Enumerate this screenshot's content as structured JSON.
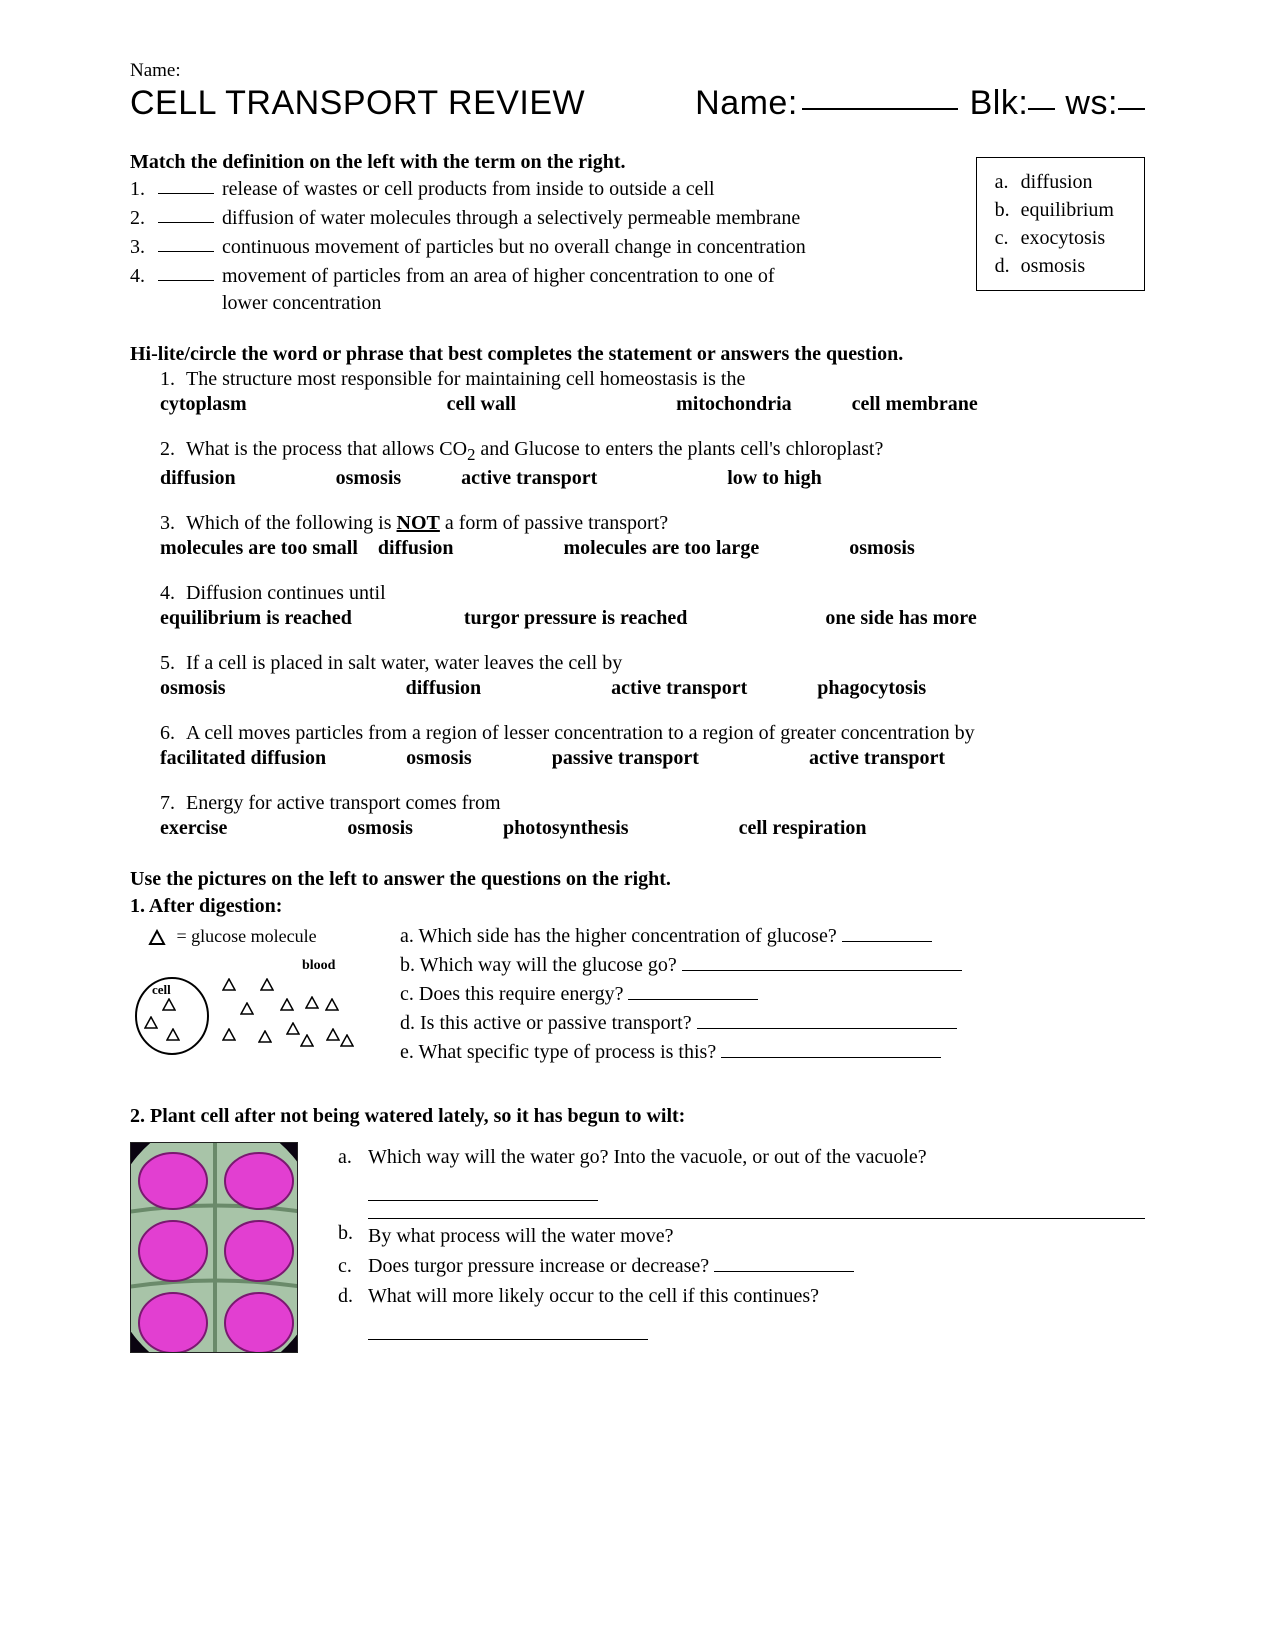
{
  "header": {
    "small_name": "Name:",
    "title": "CELL TRANSPORT REVIEW",
    "name_label": "Name:",
    "blk_label": "Blk:",
    "ws_label": "ws:"
  },
  "match": {
    "heading": "Match the definition on the left with the term on the right.",
    "items": [
      {
        "num": "1.",
        "text": "release of wastes or cell products from inside to outside a cell"
      },
      {
        "num": "2.",
        "text": "diffusion of water molecules through a selectively permeable membrane"
      },
      {
        "num": "3.",
        "text": "continuous movement of particles but no overall change in concentration"
      },
      {
        "num": "4.",
        "text": "movement of particles from an area of higher concentration to one of lower concentration"
      }
    ],
    "terms": [
      {
        "letter": "a.",
        "term": "diffusion"
      },
      {
        "letter": "b.",
        "term": "equilibrium"
      },
      {
        "letter": "c.",
        "term": "exocytosis"
      },
      {
        "letter": "d.",
        "term": "osmosis"
      }
    ]
  },
  "circle": {
    "heading": "Hi-lite/circle the word or phrase that best completes the statement or answers the question.",
    "questions": [
      {
        "num": "1.",
        "text": "The structure most responsible for maintaining cell homeostasis is the",
        "choices": [
          "cytoplasm",
          "cell wall",
          "mitochondria",
          "cell membrane"
        ],
        "gaps": [
          200,
          160,
          60,
          0
        ]
      },
      {
        "num": "2.",
        "prefix": "What is the process that allows CO",
        "sub": "2",
        "suffix": " and Glucose to enters the plants cell's chloroplast?",
        "choices": [
          "diffusion",
          "osmosis",
          "active transport",
          "low to high"
        ],
        "gaps": [
          100,
          60,
          130,
          0
        ]
      },
      {
        "num": "3.",
        "prefix": "Which of the following is ",
        "bold_u": "NOT",
        "suffix": " a form of passive transport?",
        "choices": [
          "molecules are too small",
          "diffusion",
          "molecules are too large",
          "osmosis"
        ],
        "gaps": [
          20,
          110,
          90,
          0
        ]
      },
      {
        "num": "4.",
        "text": "Diffusion continues until",
        "choices": [
          "equilibrium is reached",
          "turgor pressure is reached",
          "one side has more"
        ],
        "gaps": [
          112,
          138,
          0
        ]
      },
      {
        "num": "5.",
        "text": "If a cell is placed in salt water, water leaves the cell by",
        "choices": [
          "osmosis",
          "diffusion",
          "active transport",
          "phagocytosis"
        ],
        "gaps": [
          180,
          130,
          70,
          0
        ]
      },
      {
        "num": "6.",
        "text": "A cell moves particles from a region of lesser concentration to a region of greater concentration by",
        "choices": [
          "facilitated diffusion",
          "osmosis",
          "passive transport",
          "active transport"
        ],
        "gaps": [
          80,
          80,
          110,
          0
        ]
      },
      {
        "num": "7.",
        "text": "Energy for active transport comes from",
        "choices": [
          "exercise",
          "osmosis",
          "photosynthesis",
          "cell respiration"
        ],
        "gaps": [
          120,
          90,
          110,
          0
        ]
      }
    ]
  },
  "pictures": {
    "heading": "Use the pictures on the left to answer the questions on the right.",
    "q1_heading": "1.  After digestion:",
    "legend": "= glucose molecule",
    "blood_label": "blood",
    "cell_label": "cell",
    "q1_items": [
      {
        "letter": "a.",
        "text": "Which side has the higher concentration of glucose?",
        "blank": 90
      },
      {
        "letter": "b.",
        "text": "Which way will the glucose go?",
        "blank": 280
      },
      {
        "letter": "c.",
        "text": "Does this require energy?",
        "blank": 130
      },
      {
        "letter": "d.",
        "text": "Is this active or passive transport?",
        "blank": 260
      },
      {
        "letter": "e.",
        "text": "What specific type of process is this?",
        "blank": 220
      }
    ],
    "q2_heading": "2. Plant cell after not being watered lately, so it has begun to wilt:",
    "q2_items": [
      {
        "letter": "a.",
        "text": "Which way will the water go? Into the vacuole, or out of the vacuole?",
        "answer_below": 230
      },
      {
        "letter": "b.",
        "text": "By what process will the water move?",
        "overline": true
      },
      {
        "letter": "c.",
        "text": "Does turgor pressure increase or decrease?",
        "blank": 140
      },
      {
        "letter": "d.",
        "text": "What will more likely occur to the cell if this continues?",
        "answer_below": 280
      }
    ]
  },
  "style": {
    "micro_bg": "#0a0410",
    "cell_wall": "#a8c4a8",
    "vacuole": "#e23fd1",
    "vacuole_edge": "#7a1870"
  }
}
